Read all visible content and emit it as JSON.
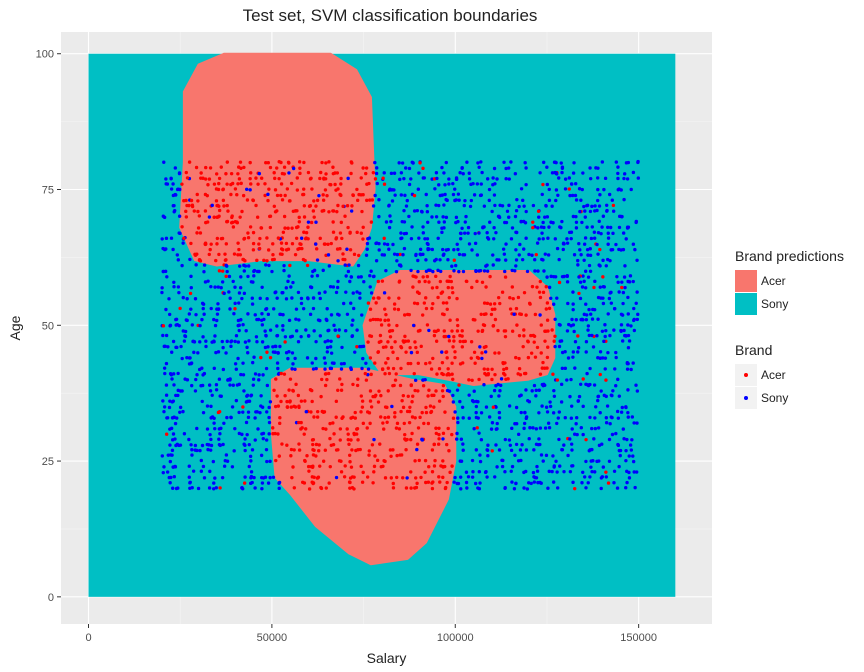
{
  "chart_data": {
    "type": "scatter",
    "title": "Test set, SVM classification boundaries",
    "xlabel": "Salary",
    "ylabel": "Age",
    "xlim": [
      -7500,
      170000
    ],
    "ylim": [
      -5,
      104
    ],
    "xticks": [
      0,
      50000,
      100000,
      150000
    ],
    "xtick_labels": [
      "0",
      "50000",
      "100000",
      "150000"
    ],
    "yticks": [
      0,
      25,
      50,
      75,
      100
    ],
    "ytick_labels": [
      "0",
      "25",
      "50",
      "75",
      "100"
    ],
    "grid": true,
    "background_region": {
      "x": [
        0,
        160000
      ],
      "y": [
        0,
        100
      ],
      "class": "Sony"
    },
    "acer_regions": [
      {
        "x": [
          25000,
          78000
        ],
        "y": [
          62,
          100
        ],
        "note": "upper lobe"
      },
      {
        "x": [
          75000,
          128000
        ],
        "y": [
          40,
          60
        ],
        "note": "middle lobe"
      },
      {
        "x": [
          48000,
          100000
        ],
        "y": [
          6,
          42
        ],
        "note": "lower lobe"
      }
    ],
    "points_x_range": [
      20000,
      150000
    ],
    "points_y_range": [
      20,
      80
    ],
    "legends": [
      {
        "title": "Brand predictions",
        "entries": [
          {
            "label": "Acer",
            "color": "#F8766D"
          },
          {
            "label": "Sony",
            "color": "#00BFC4"
          }
        ]
      },
      {
        "title": "Brand",
        "entries": [
          {
            "label": "Acer",
            "color": "#FF0000"
          },
          {
            "label": "Sony",
            "color": "#0000FF"
          }
        ]
      }
    ],
    "legend_position": "right"
  },
  "colors": {
    "acer_region": "#F8766D",
    "sony_region": "#00BFC4",
    "acer_point": "#FF0000",
    "sony_point": "#0000FF",
    "panel": "#EBEBEB"
  }
}
